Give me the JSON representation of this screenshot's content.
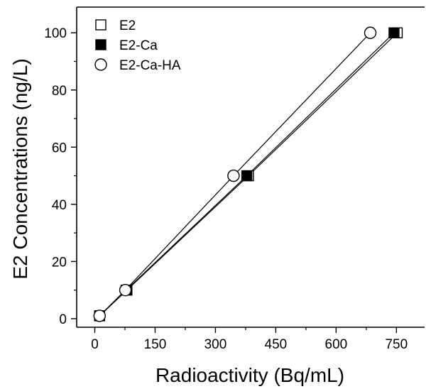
{
  "chart_data": {
    "type": "scatter",
    "xlabel": "Radioactivity (Bq/mL)",
    "ylabel": "E2 Concentrations (ng/L)",
    "xlim": [
      -45,
      820
    ],
    "ylim": [
      -3,
      109
    ],
    "xticks": [
      0,
      150,
      300,
      450,
      600,
      750
    ],
    "yticks": [
      0,
      20,
      40,
      60,
      80,
      100
    ],
    "grid": false,
    "legend_position": "top-left",
    "series": [
      {
        "name": "E2",
        "marker": "open-square",
        "line": true,
        "x": [
          12,
          80,
          382,
          752
        ],
        "y": [
          1,
          10,
          50,
          100
        ]
      },
      {
        "name": "E2-Ca",
        "marker": "filled-square",
        "line": true,
        "x": [
          12,
          78,
          378,
          744
        ],
        "y": [
          1,
          10,
          50,
          100
        ]
      },
      {
        "name": "E2-Ca-HA",
        "marker": "open-circle",
        "line": true,
        "x": [
          12,
          76,
          345,
          685
        ],
        "y": [
          1,
          10,
          50,
          100
        ]
      }
    ]
  }
}
